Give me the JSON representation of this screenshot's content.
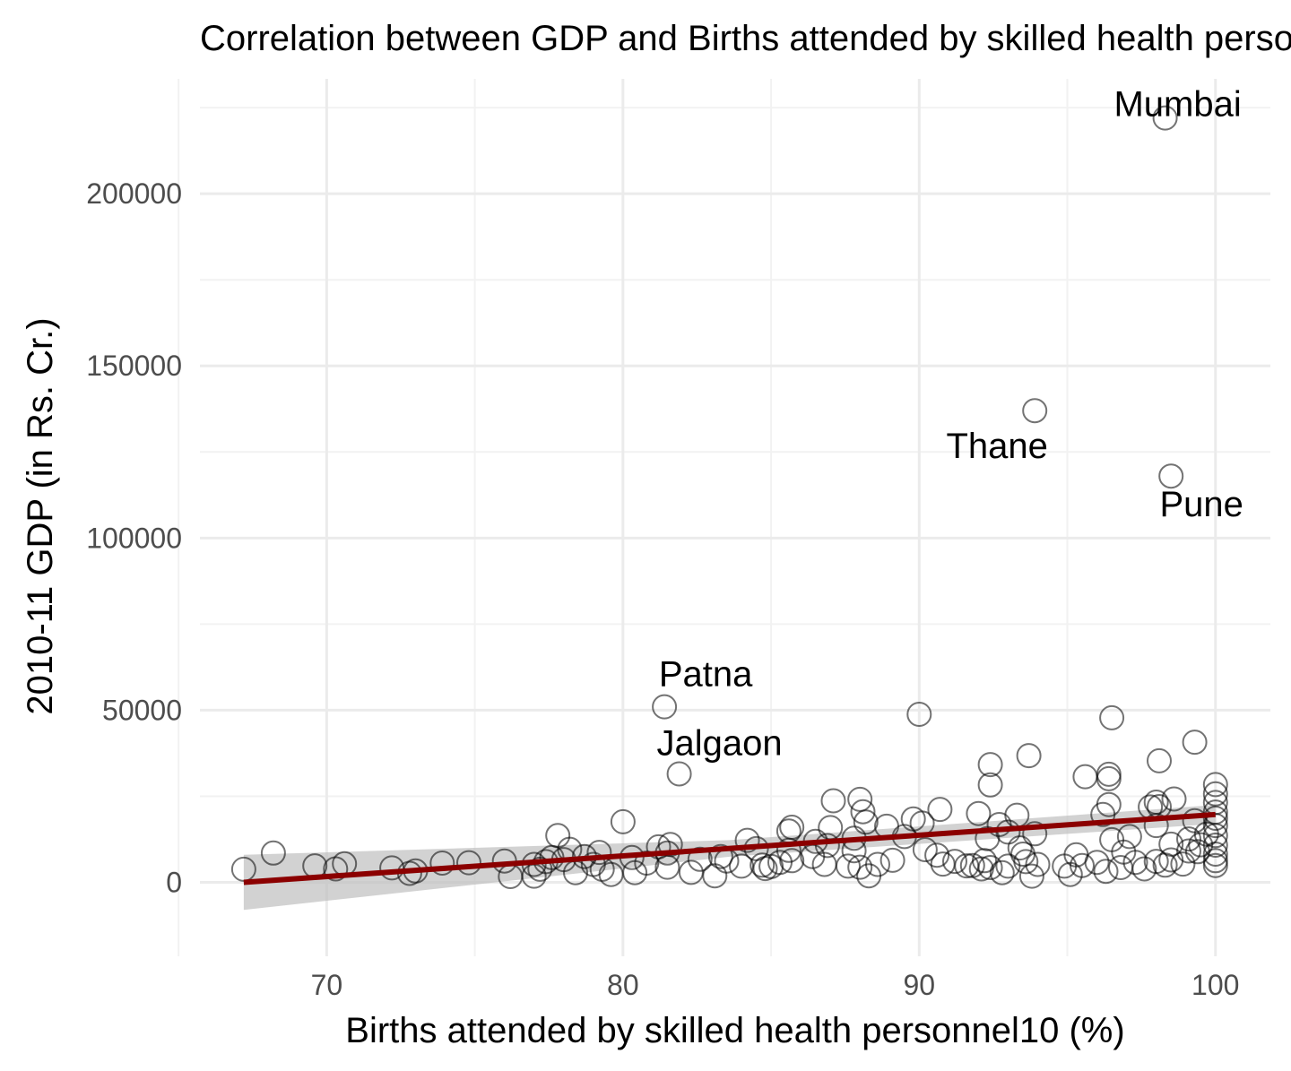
{
  "chart_data": {
    "type": "scatter",
    "title": "Correlation between GDP and Births attended by skilled health personnel",
    "xlabel": "Births attended by skilled health personnel10 (%)",
    "ylabel": "2010-11 GDP (in Rs. Cr.)",
    "xlim": [
      64.5,
      101.7
    ],
    "ylim": [
      -21000,
      226000
    ],
    "x_ticks": [
      70,
      80,
      90,
      100
    ],
    "y_ticks": [
      0,
      50000,
      100000,
      150000,
      200000
    ],
    "grid": true,
    "legend": "none",
    "colors": {
      "points": "#000000",
      "fit_line": "#8b0000",
      "confidence_band": "#bfbfbf",
      "grid": "#ebebeb"
    },
    "fit": {
      "method": "linear",
      "x": [
        67.2,
        100
      ],
      "y": [
        0,
        19700
      ],
      "band_lower": [
        -8000,
        17000
      ],
      "band_upper": [
        8000,
        22500
      ]
    },
    "labeled_points": [
      {
        "label": "Mumbai",
        "x": 98.3,
        "y": 222000
      },
      {
        "label": "Thane",
        "x": 93.9,
        "y": 137000
      },
      {
        "label": "Pune",
        "x": 98.5,
        "y": 118000
      },
      {
        "label": "Patna",
        "x": 81.4,
        "y": 51000
      },
      {
        "label": "Jalgaon",
        "x": 81.9,
        "y": 31500
      }
    ],
    "points": [
      [
        67.2,
        3800
      ],
      [
        68.2,
        8500
      ],
      [
        69.6,
        4800
      ],
      [
        70.3,
        3900
      ],
      [
        70.6,
        5400
      ],
      [
        72.2,
        4200
      ],
      [
        72.8,
        2600
      ],
      [
        73.0,
        3300
      ],
      [
        73.9,
        5600
      ],
      [
        74.8,
        5700
      ],
      [
        76.0,
        6200
      ],
      [
        76.2,
        1700
      ],
      [
        77.0,
        5200
      ],
      [
        77.0,
        1800
      ],
      [
        77.2,
        3800
      ],
      [
        77.4,
        6000
      ],
      [
        77.6,
        7200
      ],
      [
        77.8,
        13600
      ],
      [
        78.0,
        6600
      ],
      [
        78.2,
        9600
      ],
      [
        78.4,
        2800
      ],
      [
        78.7,
        7500
      ],
      [
        79.0,
        5200
      ],
      [
        79.2,
        8700
      ],
      [
        79.3,
        3800
      ],
      [
        79.6,
        2300
      ],
      [
        80.0,
        17600
      ],
      [
        80.3,
        7200
      ],
      [
        80.4,
        2800
      ],
      [
        80.8,
        5600
      ],
      [
        81.2,
        10300
      ],
      [
        81.5,
        8500
      ],
      [
        81.5,
        4400
      ],
      [
        81.6,
        11000
      ],
      [
        82.3,
        2900
      ],
      [
        82.6,
        6700
      ],
      [
        83.1,
        1900
      ],
      [
        83.3,
        7500
      ],
      [
        83.5,
        6200
      ],
      [
        84.0,
        4700
      ],
      [
        84.2,
        12200
      ],
      [
        84.5,
        9800
      ],
      [
        84.7,
        5000
      ],
      [
        84.8,
        4000
      ],
      [
        85.0,
        4600
      ],
      [
        85.3,
        5800
      ],
      [
        85.6,
        14900
      ],
      [
        85.6,
        9300
      ],
      [
        85.7,
        16000
      ],
      [
        85.7,
        6300
      ],
      [
        86.4,
        7500
      ],
      [
        86.5,
        11900
      ],
      [
        86.8,
        5200
      ],
      [
        86.9,
        10700
      ],
      [
        87.0,
        15900
      ],
      [
        87.1,
        23700
      ],
      [
        87.6,
        4700
      ],
      [
        87.8,
        9200
      ],
      [
        87.8,
        12800
      ],
      [
        88.0,
        24100
      ],
      [
        88.0,
        4400
      ],
      [
        88.1,
        20500
      ],
      [
        88.2,
        17500
      ],
      [
        88.3,
        1900
      ],
      [
        88.6,
        5200
      ],
      [
        88.9,
        16300
      ],
      [
        89.1,
        6400
      ],
      [
        89.5,
        13300
      ],
      [
        89.8,
        18400
      ],
      [
        90.0,
        48800
      ],
      [
        90.1,
        17200
      ],
      [
        90.2,
        9500
      ],
      [
        90.6,
        7900
      ],
      [
        90.7,
        21200
      ],
      [
        90.8,
        5300
      ],
      [
        91.2,
        6100
      ],
      [
        91.6,
        4800
      ],
      [
        91.8,
        4900
      ],
      [
        92.0,
        20000
      ],
      [
        92.1,
        3900
      ],
      [
        92.2,
        6300
      ],
      [
        92.3,
        12700
      ],
      [
        92.4,
        4300
      ],
      [
        92.4,
        28300
      ],
      [
        92.4,
        34200
      ],
      [
        92.7,
        16800
      ],
      [
        92.8,
        2800
      ],
      [
        93.0,
        14600
      ],
      [
        93.0,
        4700
      ],
      [
        93.3,
        19500
      ],
      [
        93.4,
        10000
      ],
      [
        93.5,
        8200
      ],
      [
        93.6,
        6000
      ],
      [
        93.7,
        36800
      ],
      [
        93.8,
        1800
      ],
      [
        93.9,
        14100
      ],
      [
        94.0,
        5200
      ],
      [
        94.9,
        4700
      ],
      [
        95.1,
        2300
      ],
      [
        95.3,
        8000
      ],
      [
        95.5,
        4900
      ],
      [
        95.6,
        30700
      ],
      [
        96.0,
        5800
      ],
      [
        96.2,
        19700
      ],
      [
        96.3,
        3200
      ],
      [
        96.4,
        31400
      ],
      [
        96.4,
        30100
      ],
      [
        96.4,
        22600
      ],
      [
        96.5,
        12400
      ],
      [
        96.5,
        47800
      ],
      [
        96.8,
        4300
      ],
      [
        96.9,
        8800
      ],
      [
        97.1,
        13300
      ],
      [
        97.3,
        5800
      ],
      [
        97.6,
        3900
      ],
      [
        97.8,
        21900
      ],
      [
        98.0,
        6100
      ],
      [
        98.0,
        16500
      ],
      [
        98.0,
        23300
      ],
      [
        98.1,
        35300
      ],
      [
        98.1,
        22000
      ],
      [
        98.3,
        5000
      ],
      [
        98.5,
        6500
      ],
      [
        98.5,
        11100
      ],
      [
        98.6,
        24200
      ],
      [
        98.9,
        5300
      ],
      [
        99.1,
        9100
      ],
      [
        99.1,
        12600
      ],
      [
        99.3,
        17900
      ],
      [
        99.3,
        40700
      ],
      [
        99.4,
        8900
      ],
      [
        99.5,
        10900
      ],
      [
        99.7,
        14000
      ],
      [
        100,
        28400
      ],
      [
        100,
        25700
      ],
      [
        100,
        23200
      ],
      [
        100,
        20400
      ],
      [
        100,
        18600
      ],
      [
        100,
        16500
      ],
      [
        100,
        13600
      ],
      [
        100,
        10800
      ],
      [
        100,
        8200
      ],
      [
        100,
        6300
      ],
      [
        100,
        4900
      ],
      [
        98.3,
        222000
      ],
      [
        93.9,
        137000
      ],
      [
        98.5,
        118000
      ],
      [
        81.4,
        51000
      ],
      [
        81.9,
        31500
      ]
    ]
  }
}
